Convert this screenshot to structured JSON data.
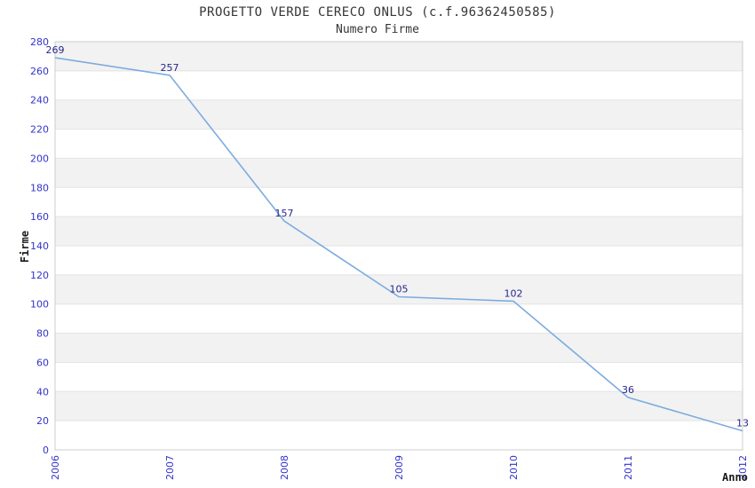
{
  "header": {
    "title": "PROGETTO VERDE CERECO ONLUS (c.f.96362450585)",
    "subtitle": "Numero Firme"
  },
  "chart_data": {
    "type": "line",
    "title": "PROGETTO VERDE CERECO ONLUS (c.f.96362450585)",
    "subtitle": "Numero Firme",
    "xlabel": "Anno",
    "ylabel": "Firme",
    "x": [
      "2006",
      "2007",
      "2008",
      "2009",
      "2010",
      "2011",
      "2012"
    ],
    "values": [
      269,
      257,
      157,
      105,
      102,
      36,
      13
    ],
    "ylim": [
      0,
      280
    ],
    "ytick_step": 20,
    "grid": "horizontal-bands",
    "legend": "none",
    "colors": {
      "line": "#7cacdf",
      "band": "#f2f2f2",
      "grid": "#e3e3e3",
      "border": "#cccccc",
      "tick_label": "#3333cc",
      "data_label": "#26268c",
      "title_text": "#363636"
    }
  }
}
